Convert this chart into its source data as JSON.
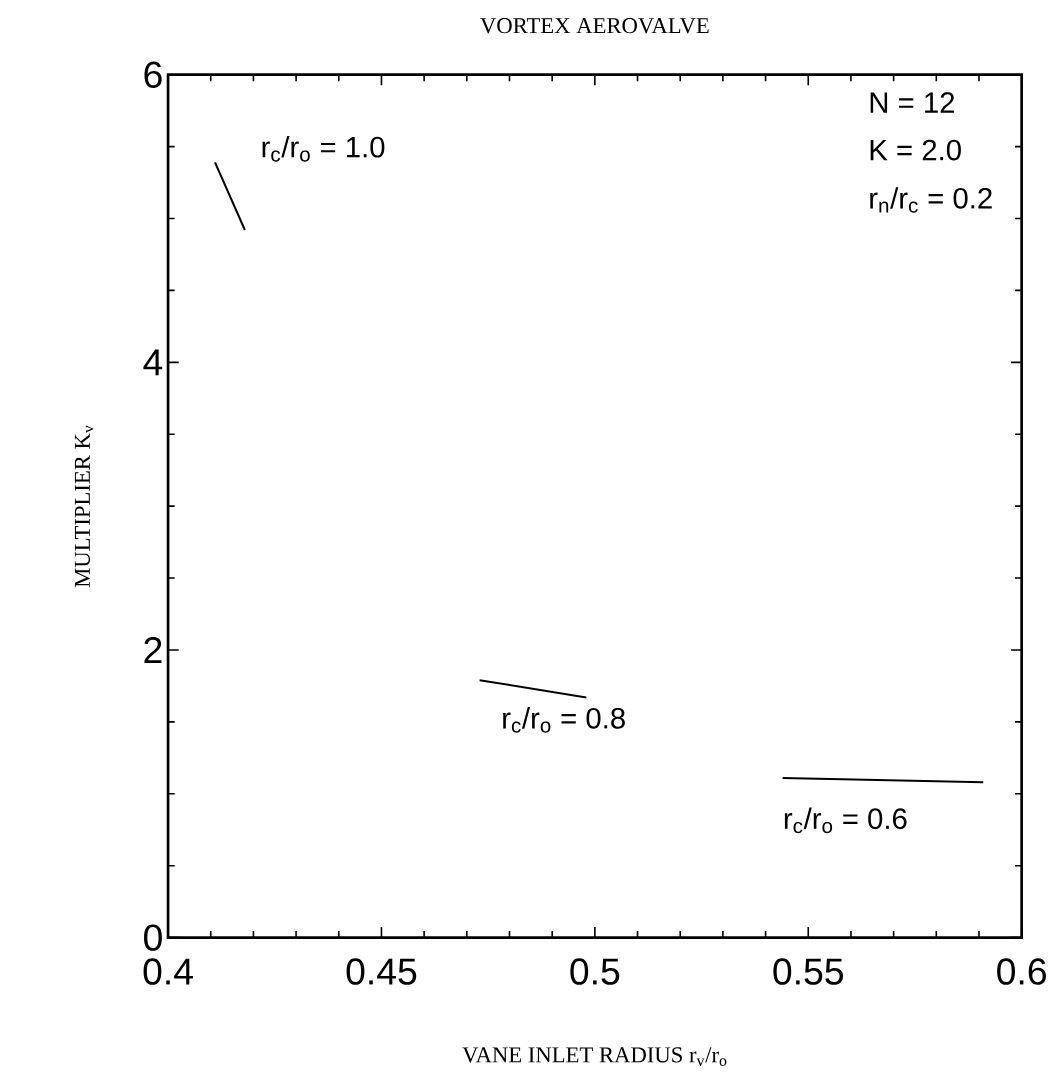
{
  "chart_data": {
    "type": "line",
    "title": "VORTEX AEROVALVE",
    "xlabel": "VANE INLET RADIUS r$_{v}$/r$_{o}$",
    "ylabel": "MULTIPLIER K$_{v}$",
    "series": [
      {
        "color": "#000000",
        "x": [
          0.411,
          0.418
        ],
        "values": [
          5.39,
          4.92
        ]
      },
      {
        "color": "#000000",
        "x": [
          0.473,
          0.498
        ],
        "values": [
          1.79,
          1.67
        ]
      },
      {
        "color": "#000000",
        "x": [
          0.544,
          0.591
        ],
        "values": [
          1.11,
          1.08
        ]
      }
    ],
    "xlim": [
      0.4,
      0.6
    ],
    "ylim": [
      0,
      6
    ],
    "xticks": [
      0.4,
      0.45,
      0.5,
      0.55,
      0.6
    ],
    "yticks": [
      0,
      2,
      4,
      6
    ],
    "grid": false,
    "marker": "none",
    "line_style": "solid",
    "annotations": [
      {
        "text": "r$_{c}$/r$_{o}$ = 1.0",
        "x": 0.411,
        "y": 5.39
      },
      {
        "text": "r$_{c}$/r$_{o}$ = 0.8",
        "x": 0.473,
        "y": 1.79
      },
      {
        "text": "r$_{c}$/r$_{o}$ = 0.6",
        "x": 0.544,
        "y": 1.11
      },
      "N = 12",
      "K = 2.0",
      "r$_{n}$/r$_{c}$ = 0.2"
    ]
  }
}
